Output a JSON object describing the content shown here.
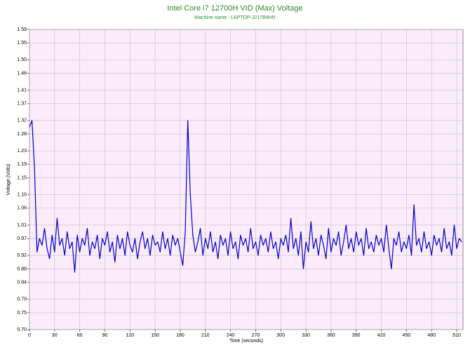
{
  "chart_data": {
    "type": "line",
    "title": "Intel Core i7 12700H VID (Max) Voltage",
    "subtitle": "Machine name : LAPTOP-J217B9HN",
    "ylabel": "Voltage (Volts)",
    "xlabel": "Time (seconds)",
    "xlim": [
      0,
      517.5
    ],
    "ylim": [
      0.7,
      1.59
    ],
    "xticks": [
      0,
      30,
      60,
      90,
      120,
      150,
      180,
      210,
      240,
      270,
      300,
      330,
      360,
      390,
      420,
      450,
      480,
      510
    ],
    "yticks": [
      {
        "value": 0.7,
        "label": "0.70"
      },
      0.75,
      0.79,
      0.84,
      0.88,
      0.92,
      0.97,
      1.01,
      1.06,
      {
        "value": 1.1,
        "label": "1.10"
      },
      1.15,
      1.19,
      1.23,
      1.28,
      1.32,
      1.37,
      1.41,
      1.46,
      {
        "value": 1.5,
        "label": "1.50"
      },
      1.55,
      1.59
    ],
    "grid": true,
    "x": [
      0,
      3,
      6,
      9,
      12,
      15,
      18,
      21,
      24,
      27,
      30,
      33,
      36,
      39,
      42,
      45,
      48,
      51,
      54,
      57,
      60,
      63,
      66,
      69,
      72,
      75,
      78,
      81,
      84,
      87,
      90,
      93,
      96,
      99,
      102,
      105,
      108,
      111,
      114,
      117,
      120,
      123,
      126,
      129,
      132,
      135,
      138,
      141,
      144,
      147,
      150,
      153,
      156,
      159,
      162,
      165,
      168,
      171,
      174,
      177,
      180,
      183,
      186,
      189,
      192,
      195,
      198,
      201,
      204,
      207,
      210,
      213,
      216,
      219,
      222,
      225,
      228,
      231,
      234,
      237,
      240,
      243,
      246,
      249,
      252,
      255,
      258,
      261,
      264,
      267,
      270,
      273,
      276,
      279,
      282,
      285,
      288,
      291,
      294,
      297,
      300,
      303,
      306,
      309,
      312,
      315,
      318,
      321,
      324,
      327,
      330,
      333,
      336,
      339,
      342,
      345,
      348,
      351,
      354,
      357,
      360,
      363,
      366,
      369,
      372,
      375,
      378,
      381,
      384,
      387,
      390,
      393,
      396,
      399,
      402,
      405,
      408,
      411,
      414,
      417,
      420,
      423,
      426,
      429,
      432,
      435,
      438,
      441,
      444,
      447,
      450,
      453,
      456,
      459,
      462,
      465,
      468,
      471,
      474,
      477,
      480,
      483,
      486,
      489,
      492,
      495,
      498,
      501,
      504,
      507,
      510,
      513,
      516
    ],
    "series": [
      {
        "name": "VID (Max)",
        "color": "#0000c8",
        "values": [
          1.3,
          1.32,
          1.18,
          0.93,
          0.97,
          0.95,
          1.0,
          0.94,
          0.91,
          0.98,
          0.93,
          1.03,
          0.95,
          0.97,
          0.92,
          0.99,
          0.94,
          0.96,
          0.87,
          0.98,
          0.93,
          0.97,
          0.95,
          1.0,
          0.92,
          0.96,
          0.94,
          0.98,
          0.91,
          0.97,
          0.95,
          0.99,
          0.93,
          0.96,
          0.9,
          0.98,
          0.94,
          0.97,
          0.92,
          0.99,
          0.95,
          0.93,
          0.97,
          0.91,
          0.96,
          0.99,
          0.94,
          0.97,
          0.92,
          0.98,
          0.95,
          0.96,
          0.93,
          0.99,
          0.94,
          0.97,
          0.92,
          0.98,
          0.95,
          0.97,
          0.93,
          0.89,
          0.99,
          1.32,
          1.1,
          0.98,
          0.93,
          0.96,
          1.0,
          0.92,
          0.97,
          0.94,
          0.99,
          0.93,
          0.96,
          0.91,
          0.98,
          0.95,
          0.97,
          0.92,
          0.99,
          0.94,
          0.96,
          0.91,
          0.98,
          0.95,
          0.97,
          0.93,
          1.0,
          0.94,
          0.96,
          0.92,
          0.98,
          0.95,
          0.97,
          0.93,
          0.99,
          0.94,
          0.96,
          0.91,
          0.97,
          0.95,
          0.98,
          0.93,
          1.03,
          0.94,
          0.97,
          0.92,
          0.99,
          0.88,
          0.96,
          0.93,
          1.02,
          0.94,
          0.97,
          0.92,
          0.98,
          0.95,
          0.91,
          1.0,
          0.93,
          0.97,
          0.95,
          0.99,
          0.92,
          0.96,
          1.01,
          0.94,
          0.97,
          0.93,
          0.99,
          0.95,
          0.97,
          0.92,
          1.0,
          0.94,
          0.96,
          0.93,
          0.98,
          0.95,
          0.97,
          0.93,
          1.01,
          0.94,
          0.88,
          0.97,
          0.95,
          0.99,
          0.93,
          0.96,
          0.94,
          0.98,
          0.92,
          1.07,
          0.95,
          0.97,
          0.93,
          0.99,
          0.94,
          0.96,
          0.92,
          0.98,
          0.95,
          0.97,
          0.93,
          1.0,
          0.94,
          0.96,
          0.92,
          1.01,
          0.94,
          0.97,
          0.96
        ]
      }
    ]
  }
}
